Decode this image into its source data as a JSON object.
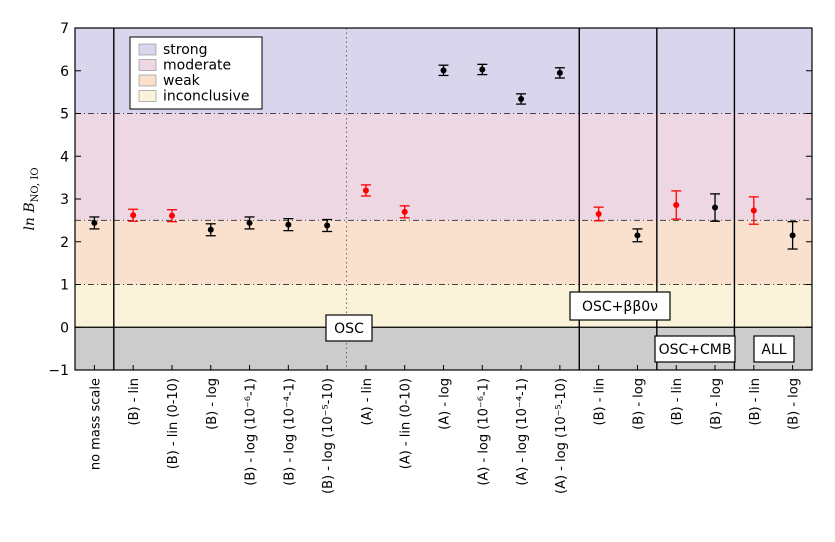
{
  "chart_data": {
    "type": "scatter",
    "title": "",
    "xlabel": "",
    "ylabel": "ln B_{NO, IO}",
    "ylim": [
      -1,
      7
    ],
    "yticks": [
      -1,
      0,
      1,
      2,
      3,
      4,
      5,
      6,
      7
    ],
    "grid": false,
    "legend_placement": "top-left",
    "bands": [
      {
        "label": "strong",
        "from": 5,
        "to": 7,
        "color": "#d9d5ec"
      },
      {
        "label": "moderate",
        "from": 2.5,
        "to": 5,
        "color": "#ecd7e3"
      },
      {
        "label": "weak",
        "from": 1,
        "to": 2.5,
        "color": "#f9e1cd"
      },
      {
        "label": "inconclusive",
        "from": 0,
        "to": 1,
        "color": "#faf3d9"
      },
      {
        "label": "",
        "from": -1,
        "to": 0,
        "color": "#cccccc"
      }
    ],
    "threshold_lines": [
      1,
      2.5,
      5
    ],
    "categories": [
      "no mass scale",
      "(B) - lin",
      "(B) - lin (0-10)",
      "(B) - log",
      "(B) - log (10⁻⁶-1)",
      "(B) - log (10⁻⁴-1)",
      "(B) - log (10⁻⁵-10)",
      "(A) - lin",
      "(A) - lin (0-10)",
      "(A) - log",
      "(A) - log (10⁻⁶-1)",
      "(A) - log (10⁻⁴-1)",
      "(A) - log (10⁻⁵-10)",
      "(B) - lin",
      "(B) - log",
      "(B) - lin",
      "(B) - log",
      "(B) - lin",
      "(B) - log"
    ],
    "values": [
      2.44,
      2.62,
      2.61,
      2.28,
      2.44,
      2.4,
      2.38,
      3.2,
      2.7,
      6.01,
      6.03,
      5.34,
      5.95,
      2.65,
      2.15,
      2.86,
      2.8,
      2.73,
      2.15
    ],
    "err": [
      0.14,
      0.14,
      0.14,
      0.14,
      0.14,
      0.14,
      0.14,
      0.13,
      0.14,
      0.12,
      0.12,
      0.12,
      0.12,
      0.16,
      0.15,
      0.33,
      0.32,
      0.32,
      0.32
    ],
    "colors": [
      "#000000",
      "#ff0000",
      "#ff0000",
      "#000000",
      "#000000",
      "#000000",
      "#000000",
      "#ff0000",
      "#ff0000",
      "#000000",
      "#000000",
      "#000000",
      "#000000",
      "#ff0000",
      "#000000",
      "#ff0000",
      "#000000",
      "#ff0000",
      "#000000"
    ],
    "groups": [
      {
        "label": "OSC",
        "start_index": 1,
        "end_index": 12
      },
      {
        "label": "OSC+ββ0ν",
        "start_index": 13,
        "end_index": 14
      },
      {
        "label": "OSC+CMB",
        "start_index": 15,
        "end_index": 16
      },
      {
        "label": "ALL",
        "start_index": 17,
        "end_index": 18
      }
    ],
    "dotted_divider_after_index": 6
  }
}
